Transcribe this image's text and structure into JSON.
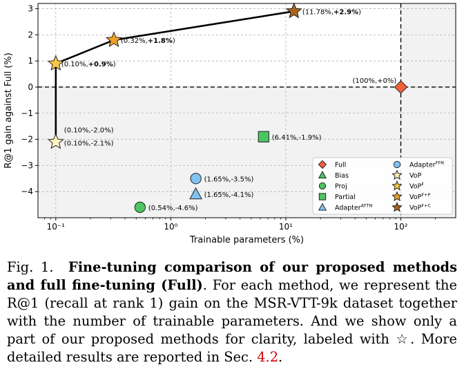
{
  "chart_data": {
    "type": "scatter",
    "xscale": "log",
    "xlim": [
      0.07,
      300
    ],
    "ylim": [
      -5.0,
      3.2
    ],
    "xlabel": "Trainable parameters (%)",
    "ylabel": "R@1 gain against Full (%)",
    "yticks": [
      -4,
      -3,
      -2,
      -1,
      0,
      1,
      2,
      3
    ],
    "ytick_labels": [
      "−4",
      "−3",
      "−2",
      "−1",
      "0",
      "1",
      "2",
      "3"
    ],
    "xticks": [
      0.1,
      1,
      10,
      100
    ],
    "xtick_labels": [
      "10⁻¹",
      "10⁰",
      "10¹",
      "10²"
    ],
    "grid": true,
    "legend_position": "lower-right",
    "reference_lines": {
      "vertical_x": 100,
      "horizontal_y": 0
    },
    "frontier": [
      [
        0.1,
        -2.1
      ],
      [
        0.1,
        0.9
      ],
      [
        0.32,
        1.8
      ],
      [
        11.78,
        2.9
      ]
    ],
    "points": [
      {
        "name": "Full",
        "marker": "diamond",
        "color": "#f4623a",
        "x": 100,
        "y": 0.0,
        "label": "(100%,+0%)"
      },
      {
        "name": "Partial",
        "marker": "square",
        "color": "#4cc461",
        "x": 6.41,
        "y": -1.9,
        "label": "(6.41%,-1.9%)"
      },
      {
        "name": "Proj",
        "marker": "circle",
        "color": "#4cc461",
        "x": 0.54,
        "y": -4.6,
        "label": "(0.54%,-4.6%)"
      },
      {
        "name": "AdapterFFN",
        "marker": "circle",
        "color": "#7fc3f2",
        "x": 1.65,
        "y": -3.5,
        "label": "(1.65%,-3.5%)"
      },
      {
        "name": "AdapterATTN",
        "marker": "triangle",
        "color": "#7fc3f2",
        "x": 1.65,
        "y": -4.1,
        "label": "(1.65%,-4.1%)"
      },
      {
        "name": "VoP",
        "marker": "star",
        "color": "#fef4c0",
        "x": 0.1,
        "y": -2.1,
        "label": "(0.10%,-2.1%)"
      },
      {
        "name": "VoPF",
        "marker": "star",
        "color": "#f9c84a",
        "x": 0.1,
        "y": 0.9,
        "label": "(0.10%,+0.9%)",
        "label_bold": "+0.9%"
      },
      {
        "name": "VoPF+P",
        "marker": "star",
        "color": "#f0a126",
        "x": 0.32,
        "y": 1.8,
        "label": "(0.32%,+1.8%)",
        "label_bold": "+1.8%"
      },
      {
        "name": "VoPF+C",
        "marker": "star",
        "color": "#a9651f",
        "x": 11.78,
        "y": 2.9,
        "label": "(11.78%,+2.9%)",
        "label_bold": "+2.9%"
      }
    ],
    "extra_label": "(0.10%,-2.0%)",
    "legend": [
      {
        "label": "Full",
        "sup": "",
        "marker": "diamond",
        "color": "#f4623a"
      },
      {
        "label": "Bias",
        "sup": "",
        "marker": "triangle",
        "color": "#4cc461"
      },
      {
        "label": "Proj",
        "sup": "",
        "marker": "circle",
        "color": "#4cc461"
      },
      {
        "label": "Partial",
        "sup": "",
        "marker": "square",
        "color": "#4cc461"
      },
      {
        "label": "Adapter",
        "sup": "ATTN",
        "marker": "triangle",
        "color": "#7fc3f2"
      },
      {
        "label": "Adapter",
        "sup": "FFN",
        "marker": "circle",
        "color": "#7fc3f2"
      },
      {
        "label": "VoP",
        "sup": "",
        "marker": "star",
        "color": "#fef4c0"
      },
      {
        "label": "VoP",
        "sup": "F",
        "marker": "star",
        "color": "#f9c84a"
      },
      {
        "label": "VoP",
        "sup": "F+P",
        "marker": "star",
        "color": "#f0a126"
      },
      {
        "label": "VoP",
        "sup": "F+C",
        "marker": "star",
        "color": "#a9651f"
      }
    ]
  },
  "caption": {
    "fig_label": "Fig. 1.",
    "bold_part": "Fine-tuning comparison of our proposed methods and full fine-tuning (Full)",
    "rest": ". For each method, we represent the R@1 (recall at rank 1) gain on the MSR-VTT-9k dataset together with the number of trainable parameters. And we show only a part of our proposed methods for clarity, labeled with ☆. More detailed results are reported in Sec. ",
    "ref": "4.2",
    "end": "."
  }
}
